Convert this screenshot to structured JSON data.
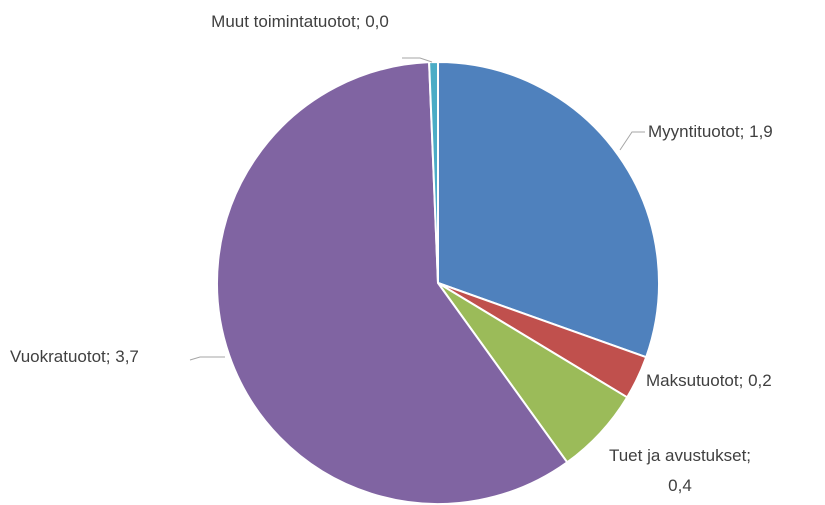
{
  "chart_data": {
    "type": "pie",
    "categories": [
      "Myyntituotot",
      "Maksutuotot",
      "Tuet ja avustukset",
      "Vuokratuotot",
      "Muut toimintatuotot"
    ],
    "values": [
      1.9,
      0.2,
      0.4,
      3.7,
      0.04
    ],
    "value_labels": [
      "1,9",
      "0,2",
      "0,4",
      "3,7",
      "0,0"
    ],
    "label_separator": "; ",
    "colors": [
      "#4f81bd",
      "#c0504d",
      "#9bbb59",
      "#8064a2",
      "#4bacc6"
    ]
  }
}
